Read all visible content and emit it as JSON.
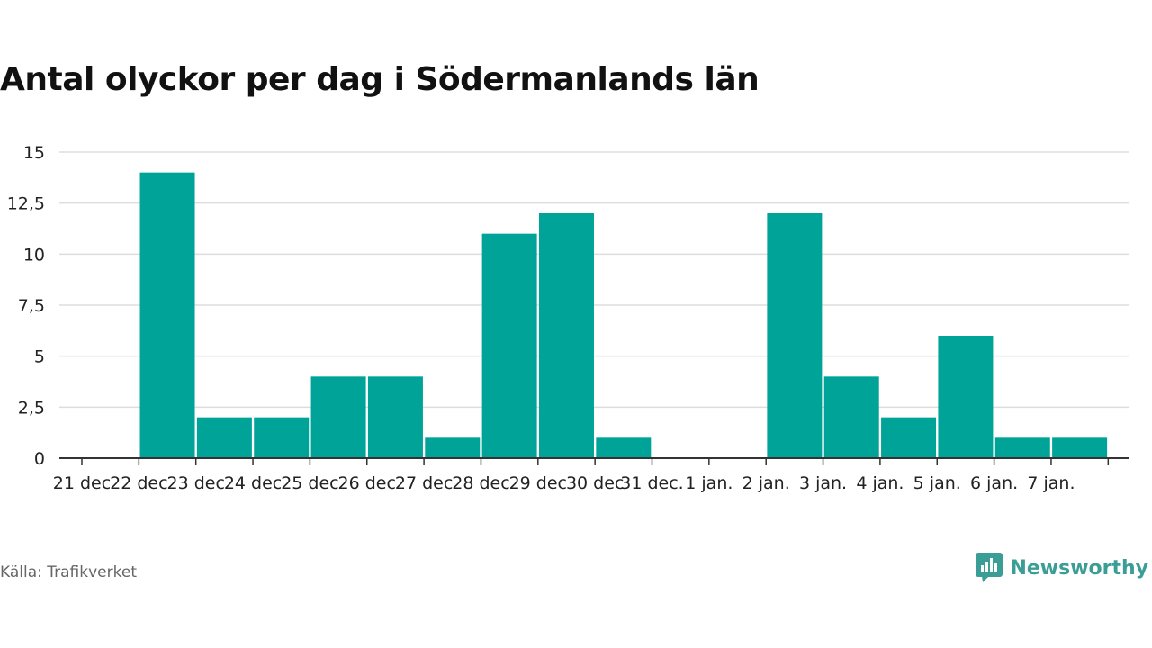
{
  "title": "Antal olyckor per dag i Södermanlands län",
  "source": "Källa: Trafikverket",
  "brand": "Newsworthy",
  "colors": {
    "bar": "#00a398",
    "grid": "#dddddd",
    "axis": "#333333",
    "brand": "#3a9e96"
  },
  "chart_data": {
    "type": "bar",
    "title": "Antal olyckor per dag i Södermanlands län",
    "xlabel": "",
    "ylabel": "",
    "categories": [
      "21 dec",
      "22 dec",
      "23 dec",
      "24 dec",
      "25 dec",
      "26 dec",
      "27 dec",
      "28 dec",
      "29 dec",
      "30 dec",
      "31 dec.",
      "1 jan.",
      "2 jan.",
      "3 jan.",
      "4 jan.",
      "5 jan.",
      "6 jan.",
      "7 jan."
    ],
    "values": [
      0,
      14,
      2,
      2,
      4,
      4,
      1,
      11,
      12,
      1,
      0,
      0,
      12,
      4,
      2,
      6,
      1,
      1
    ],
    "ylim": [
      0,
      15
    ],
    "yticks": [
      "0",
      "2,5",
      "5",
      "7,5",
      "10",
      "12,5",
      "15"
    ],
    "grid": true,
    "legend": "none"
  }
}
